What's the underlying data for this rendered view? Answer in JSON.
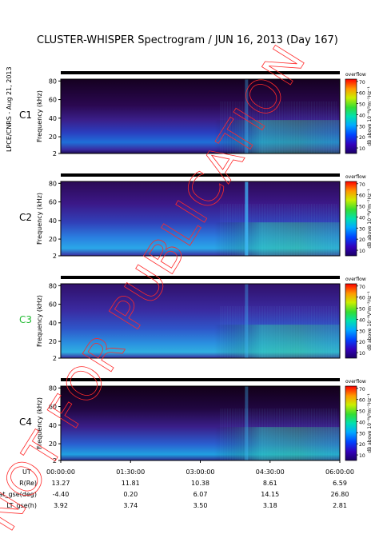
{
  "chart_data": {
    "type": "heatmap",
    "title": "CLUSTER-WHISPER Spectrogram / JUN 16, 2013 (Day 167)",
    "side_label": "LPCE/CNRS - Aug 21, 2013",
    "watermark": "NOT FOR PUBLICATION",
    "ylabel": "Frequency (kHz)",
    "y_ticks": [
      2,
      20,
      40,
      60,
      80
    ],
    "ylim": [
      2,
      82
    ],
    "xlim": [
      "00:00:00",
      "06:00:00"
    ],
    "colorbar": {
      "label": "dB above 10⁻⁸V²m⁻²Hz⁻¹",
      "overflow_label": "overflow",
      "ticks": [
        10,
        20,
        30,
        40,
        50,
        60,
        70
      ],
      "range": [
        5,
        72
      ]
    },
    "panels": [
      {
        "name": "C1",
        "label_color": "#000000"
      },
      {
        "name": "C2",
        "label_color": "#000000"
      },
      {
        "name": "C3",
        "label_color": "#22bb33"
      },
      {
        "name": "C4",
        "label_color": "#000000"
      }
    ],
    "orbit_table": {
      "rows": [
        {
          "label": "UT",
          "values": [
            "00:00:00",
            "01:30:00",
            "03:00:00",
            "04:30:00",
            "06:00:00"
          ]
        },
        {
          "label": "R(Re)",
          "values": [
            "13.27",
            "11.81",
            "10.38",
            "8.61",
            "6.59"
          ]
        },
        {
          "label": "Lat_gse(deg)",
          "values": [
            "-4.40",
            "0.20",
            "6.07",
            "14.15",
            "26.80"
          ]
        },
        {
          "label": "LT_gse(h)",
          "values": [
            "3.92",
            "3.74",
            "3.50",
            "3.18",
            "2.81"
          ]
        }
      ]
    }
  }
}
